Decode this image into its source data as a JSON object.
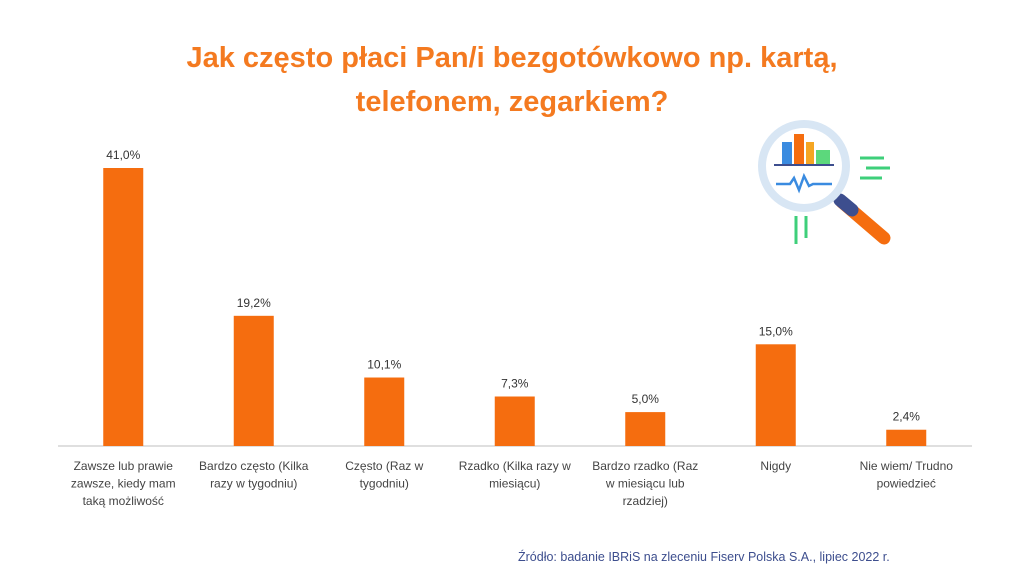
{
  "title_lines": [
    "Jak często płaci Pan/i bezgotówkowo np. kartą,",
    "telefonem, zegarkiem?"
  ],
  "source": "Źródło: badanie IBRiS na zleceniu Fiserv Polska S.A., lipiec 2022 r.",
  "colors": {
    "bar": "#f56d0f",
    "title": "#f47a20",
    "source": "#3d4e8e",
    "axis": "#bfbfbf"
  },
  "icon": "magnifier-chart-icon",
  "chart_data": {
    "type": "bar",
    "categories": [
      [
        "Zawsze lub prawie",
        "zawsze, kiedy mam",
        "taką możliwość"
      ],
      [
        "Bardzo często (Kilka",
        "razy w tygodniu)"
      ],
      [
        "Często (Raz w",
        "tygodniu)"
      ],
      [
        "Rzadko (Kilka razy w",
        "miesiącu)"
      ],
      [
        "Bardzo rzadko (Raz",
        "w miesiącu lub",
        "rzadziej)"
      ],
      [
        "Nigdy"
      ],
      [
        "Nie wiem/ Trudno",
        "powiedzieć"
      ]
    ],
    "values": [
      41.0,
      19.2,
      10.1,
      7.3,
      5.0,
      15.0,
      2.4
    ],
    "data_labels": [
      "41,0%",
      "19,2%",
      "10,1%",
      "7,3%",
      "5,0%",
      "15,0%",
      "2,4%"
    ],
    "ylim": [
      0,
      41.0
    ],
    "grid": false,
    "legend": "none"
  }
}
